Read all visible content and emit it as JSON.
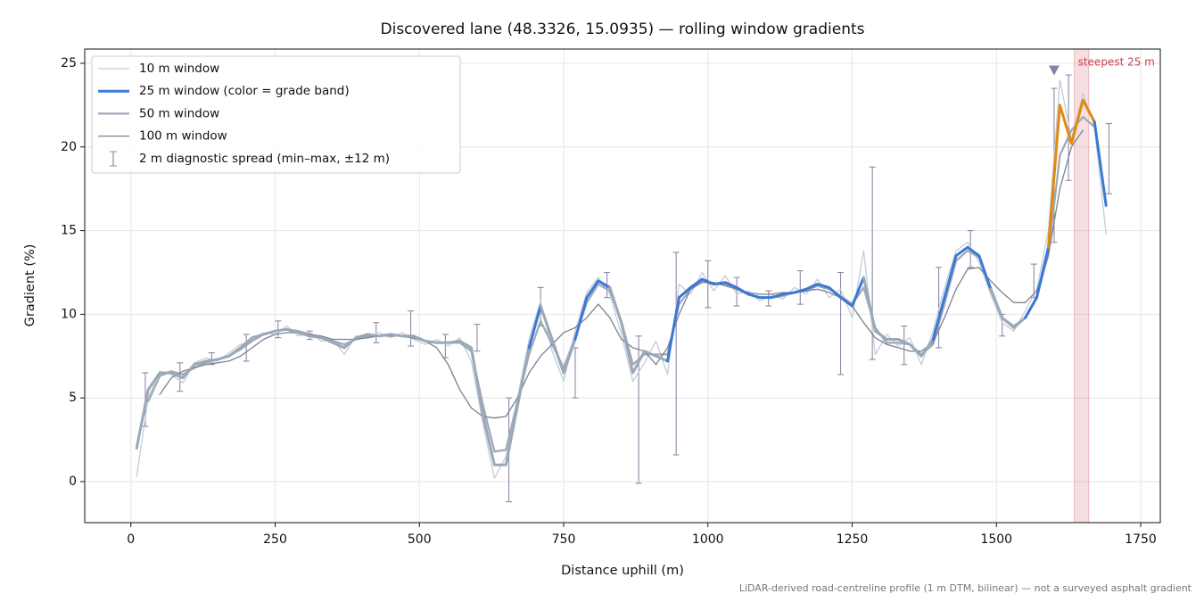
{
  "chart_data": {
    "type": "line",
    "title": "Discovered lane (48.3326, 15.0935) — rolling window gradients",
    "xlabel": "Distance uphill (m)",
    "ylabel": "Gradient (%)",
    "note": "LiDAR-derived road-centreline profile (1 m DTM, bilinear) — not a surveyed asphalt gradient",
    "xlim": [
      -80,
      1784
    ],
    "ylim": [
      -2.45,
      25.85
    ],
    "xticks": [
      0,
      250,
      500,
      750,
      1000,
      1250,
      1500,
      1750
    ],
    "yticks": [
      0,
      5,
      10,
      15,
      20,
      25
    ],
    "grid": true,
    "legend": "upper left",
    "x": [
      10,
      30,
      50,
      70,
      90,
      110,
      130,
      150,
      170,
      190,
      210,
      230,
      250,
      270,
      290,
      310,
      330,
      350,
      370,
      390,
      410,
      430,
      450,
      470,
      490,
      510,
      530,
      550,
      570,
      590,
      610,
      630,
      650,
      670,
      690,
      710,
      730,
      750,
      770,
      790,
      810,
      830,
      850,
      870,
      890,
      910,
      930,
      950,
      970,
      990,
      1010,
      1030,
      1050,
      1070,
      1090,
      1110,
      1130,
      1150,
      1170,
      1190,
      1210,
      1230,
      1250,
      1270,
      1290,
      1310,
      1330,
      1350,
      1370,
      1390,
      1410,
      1430,
      1450,
      1470,
      1490,
      1510,
      1530,
      1550,
      1570,
      1590,
      1610,
      1630,
      1650,
      1670,
      1690
    ],
    "series": [
      {
        "name": "10 m window",
        "color": "#c5ccd8",
        "width": 1.3,
        "values": [
          0.3,
          5.0,
          6.6,
          6.4,
          5.9,
          7.1,
          7.4,
          7.2,
          7.7,
          8.2,
          8.4,
          8.9,
          8.8,
          9.3,
          8.7,
          8.9,
          8.4,
          8.5,
          7.6,
          8.7,
          8.6,
          8.9,
          8.6,
          8.9,
          8.5,
          8.2,
          8.5,
          8.1,
          8.6,
          7.2,
          3.5,
          0.2,
          1.5,
          5.0,
          8.5,
          10.8,
          7.8,
          6.0,
          9.0,
          11.3,
          12.2,
          11.2,
          8.8,
          6.0,
          7.1,
          8.4,
          6.4,
          11.8,
          11.2,
          12.5,
          11.4,
          12.3,
          11.2,
          11.4,
          10.8,
          11.2,
          10.9,
          11.6,
          11.2,
          12.1,
          11.0,
          11.5,
          9.8,
          13.8,
          7.6,
          8.8,
          8.1,
          8.6,
          7.0,
          9.0,
          11.6,
          13.8,
          14.3,
          13.1,
          11.2,
          9.5,
          9.0,
          10.2,
          11.5,
          15.0,
          24.0,
          20.5,
          23.2,
          21.2,
          14.8
        ]
      },
      {
        "name": "25 m window (color = grade band)",
        "color": "#3a78d4",
        "width": 3,
        "banded": true,
        "values": [
          2.0,
          5.5,
          6.5,
          6.5,
          6.2,
          7.0,
          7.2,
          7.3,
          7.5,
          8.0,
          8.6,
          8.8,
          9.0,
          9.1,
          8.9,
          8.7,
          8.6,
          8.3,
          8.0,
          8.6,
          8.8,
          8.7,
          8.8,
          8.7,
          8.7,
          8.4,
          8.3,
          8.3,
          8.4,
          8.0,
          4.0,
          1.0,
          1.0,
          4.5,
          8.0,
          10.5,
          8.5,
          6.5,
          8.5,
          11.0,
          12.0,
          11.6,
          9.5,
          6.5,
          7.8,
          7.5,
          7.2,
          11.0,
          11.6,
          12.1,
          11.8,
          11.9,
          11.6,
          11.2,
          11.0,
          11.0,
          11.2,
          11.3,
          11.5,
          11.8,
          11.6,
          11.0,
          10.5,
          12.2,
          9.0,
          8.5,
          8.5,
          8.2,
          7.5,
          8.5,
          11.0,
          13.5,
          14.0,
          13.5,
          11.5,
          9.8,
          9.2,
          9.8,
          11.0,
          14.0,
          22.5,
          20.2,
          22.8,
          21.5,
          16.5
        ]
      },
      {
        "name": "50 m window",
        "color": "#a0aab8",
        "width": 2.3,
        "values": [
          null,
          4.8,
          6.3,
          6.6,
          6.4,
          6.8,
          7.1,
          7.3,
          7.5,
          7.9,
          8.4,
          8.8,
          9.0,
          9.1,
          9.0,
          8.8,
          8.6,
          8.4,
          8.2,
          8.5,
          8.7,
          8.7,
          8.8,
          8.7,
          8.6,
          8.4,
          8.3,
          8.3,
          8.3,
          7.8,
          4.6,
          1.8,
          1.9,
          4.8,
          7.6,
          9.6,
          8.2,
          6.8,
          8.6,
          10.7,
          11.8,
          11.4,
          9.6,
          7.0,
          7.6,
          7.6,
          7.6,
          10.6,
          11.5,
          12.0,
          11.8,
          11.8,
          11.5,
          11.2,
          11.0,
          11.0,
          11.1,
          11.3,
          11.4,
          11.7,
          11.5,
          11.1,
          10.6,
          11.6,
          9.2,
          8.3,
          8.3,
          8.2,
          7.6,
          8.2,
          10.6,
          13.2,
          13.8,
          13.4,
          11.6,
          9.8,
          9.3,
          9.8,
          11.0,
          13.6,
          19.5,
          21.0,
          21.8,
          21.2,
          null
        ]
      },
      {
        "name": "100 m window",
        "color": "#7c8290",
        "width": 1.3,
        "values": [
          null,
          null,
          5.2,
          6.2,
          6.6,
          6.8,
          7.0,
          7.1,
          7.2,
          7.5,
          8.0,
          8.5,
          8.8,
          8.9,
          8.9,
          8.8,
          8.7,
          8.5,
          8.5,
          8.5,
          8.6,
          8.7,
          8.7,
          8.7,
          8.6,
          8.4,
          8.0,
          7.0,
          5.5,
          4.4,
          3.9,
          3.8,
          3.9,
          5.0,
          6.5,
          7.5,
          8.2,
          8.9,
          9.2,
          9.8,
          10.6,
          9.8,
          8.5,
          8.0,
          7.8,
          7.0,
          8.0,
          10.0,
          11.5,
          11.9,
          11.9,
          11.7,
          11.5,
          11.3,
          11.2,
          11.2,
          11.3,
          11.3,
          11.4,
          11.5,
          11.3,
          11.0,
          10.5,
          9.5,
          8.6,
          8.2,
          8.0,
          7.8,
          7.8,
          8.3,
          9.8,
          11.5,
          12.7,
          12.8,
          12.0,
          11.3,
          10.7,
          10.7,
          11.4,
          13.5,
          17.5,
          20.0,
          21.0,
          null,
          null
        ]
      }
    ],
    "grade_bands": {
      "thresholds": [
        10,
        20
      ],
      "colors": [
        "#9aa8b8",
        "#3a78d4",
        "#e08a10"
      ]
    },
    "spread": {
      "name": "2 m diagnostic spread (min–max, ±12 m)",
      "color": "#9088a8",
      "x": [
        25,
        85,
        140,
        200,
        255,
        310,
        425,
        485,
        545,
        600,
        655,
        710,
        770,
        825,
        880,
        945,
        1000,
        1050,
        1105,
        1160,
        1230,
        1285,
        1340,
        1400,
        1455,
        1510,
        1565,
        1600,
        1625,
        1695
      ],
      "min": [
        3.3,
        5.4,
        7.0,
        7.2,
        8.6,
        8.5,
        8.3,
        8.1,
        7.4,
        7.8,
        -1.2,
        9.3,
        5.0,
        11.0,
        -0.1,
        1.6,
        10.4,
        10.5,
        10.5,
        10.6,
        6.4,
        7.3,
        7.0,
        8.0,
        12.8,
        8.7,
        11.0,
        14.3,
        18.0,
        17.2
      ],
      "max": [
        6.5,
        7.1,
        7.7,
        8.8,
        9.6,
        9.0,
        9.5,
        10.2,
        8.8,
        9.4,
        5.0,
        11.6,
        8.0,
        12.5,
        8.7,
        13.7,
        13.2,
        12.2,
        11.4,
        12.6,
        12.5,
        18.8,
        9.3,
        12.8,
        15.0,
        10.0,
        13.0,
        23.5,
        24.3,
        21.4
      ]
    },
    "marker": {
      "x": 1600,
      "value": 24.6,
      "color": "#8880a8"
    },
    "highlight": {
      "x": [
        1635,
        1660
      ],
      "label": "steepest 25 m",
      "color": "#d04050"
    }
  }
}
